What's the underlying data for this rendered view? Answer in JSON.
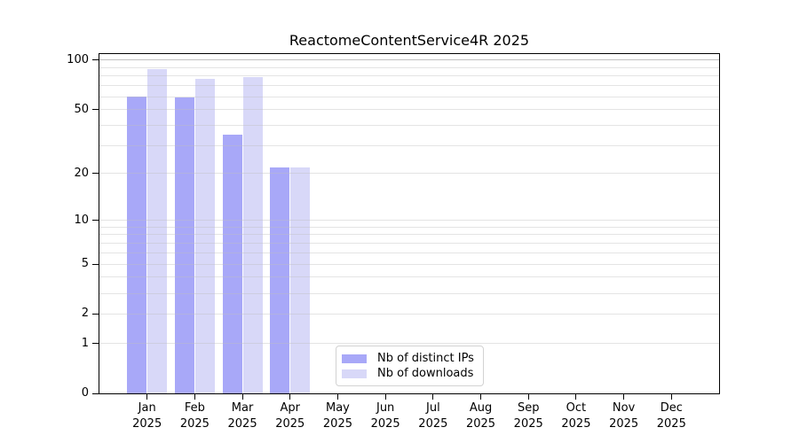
{
  "chart_data": {
    "type": "bar",
    "title": "ReactomeContentService4R 2025",
    "y_scale": "log1p",
    "grid": true,
    "categories": [
      "Jan",
      "Feb",
      "Mar",
      "Apr",
      "May",
      "Jun",
      "Jul",
      "Aug",
      "Sep",
      "Oct",
      "Nov",
      "Dec"
    ],
    "x_tick_year": "2025",
    "series": [
      {
        "name": "Nb of distinct IPs",
        "color": "#a8a8f8",
        "values": [
          60,
          59,
          35,
          22,
          0,
          0,
          0,
          0,
          0,
          0,
          0,
          0
        ]
      },
      {
        "name": "Nb of downloads",
        "color": "#d8d8f8",
        "values": [
          88,
          77,
          79,
          22,
          0,
          0,
          0,
          0,
          0,
          0,
          0,
          0
        ]
      }
    ],
    "y_ticks": [
      100,
      50,
      20,
      10,
      5,
      2,
      1,
      0
    ],
    "gridlines": [
      1,
      2,
      3,
      4,
      5,
      6,
      7,
      8,
      9,
      10,
      20,
      30,
      40,
      50,
      60,
      70,
      80,
      90,
      100
    ],
    "emphasized_gridline": 100,
    "ylim": [
      0,
      109
    ],
    "legend_position": "inside-bottom-center"
  },
  "colors": {
    "bar_distinct_ips": "#a8a8f8",
    "bar_downloads": "#d8d8f8",
    "gridline": "#ebebeb",
    "gridline_emphasized": "#c6c6c6",
    "axis": "#000000",
    "background": "#ffffff"
  }
}
